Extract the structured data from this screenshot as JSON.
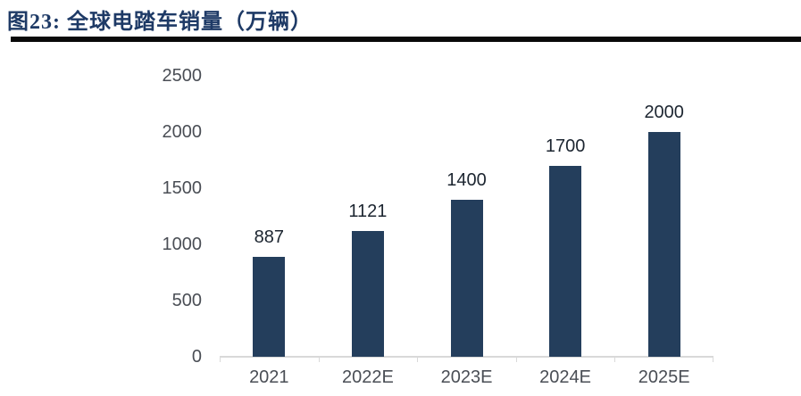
{
  "header": {
    "title": "图23: 全球电踏车销量（万辆）",
    "title_color": "#1e3a66",
    "rule_color": "#0a0a0a"
  },
  "chart_data": {
    "type": "bar",
    "figure_label": "图23",
    "title": "全球电踏车销量（万辆）",
    "categories": [
      "2021",
      "2022E",
      "2023E",
      "2024E",
      "2025E"
    ],
    "values": [
      887,
      1121,
      1400,
      1700,
      2000
    ],
    "xlabel": "",
    "ylabel": "",
    "ylim": [
      0,
      2500
    ],
    "yticks": [
      0,
      500,
      1000,
      1500,
      2000,
      2500
    ],
    "grid": false,
    "legend": "none",
    "data_labels": true,
    "bar_color": "#243e5c",
    "data_label_color": "#1c2530",
    "axis_label_color": "#4a4e55",
    "axis_line_color": "#d9d9d9"
  }
}
